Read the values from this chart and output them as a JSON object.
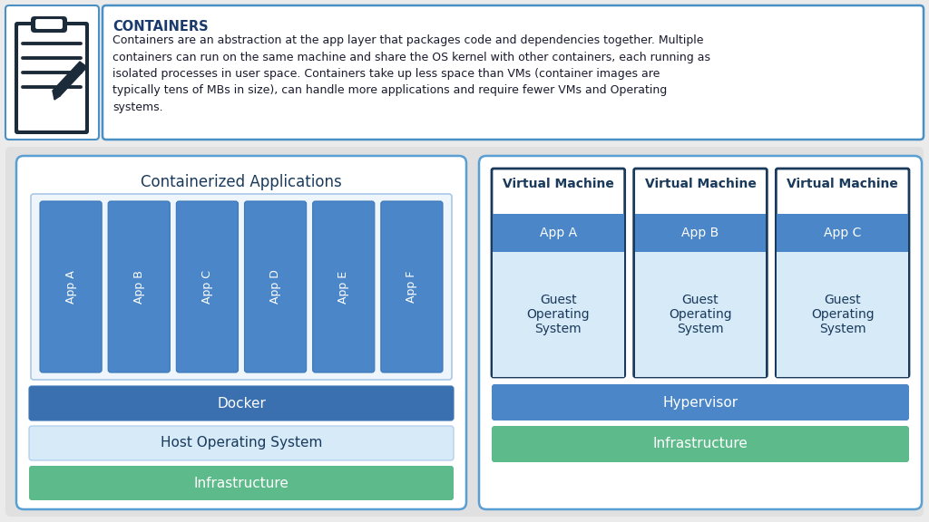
{
  "bg_color": "#ebebeb",
  "top_box_border": "#4a90c4",
  "top_box_bg": "#ffffff",
  "title_text": "CONTAINERS",
  "title_color": "#1a3a6b",
  "body_text": "Containers are an abstraction at the app layer that packages code and dependencies together. Multiple\ncontainers can run on the same machine and share the OS kernel with other containers, each running as\nisolated processes in user space. Containers take up less space than VMs (container images are\ntypically tens of MBs in size), can handle more applications and require fewer VMs and Operating\nsystems.",
  "body_color": "#1a1a2e",
  "left_panel_title": "Containerized Applications",
  "left_panel_title_color": "#1a3a5c",
  "apps_left": [
    "App A",
    "App B",
    "App C",
    "App D",
    "App E",
    "App F"
  ],
  "app_bar_color": "#4a86c8",
  "app_bar_border": "#3a76b8",
  "docker_color": "#3a6fb0",
  "docker_text": "Docker",
  "host_os_color": "#d6eaf8",
  "host_os_text": "Host Operating System",
  "host_os_text_color": "#1a3a5c",
  "infra_color": "#5dba8a",
  "infra_text": "Infrastructure",
  "infra_text_color": "#ffffff",
  "docker_text_color": "#ffffff",
  "vm_header_color": "#ffffff",
  "vm_header_border": "#1a3a5c",
  "vm_title_text": "Virtual Machine",
  "vm_title_color": "#1a3a5c",
  "vm_app_colors": [
    "#4a86c8",
    "#4a86c8",
    "#4a86c8"
  ],
  "vm_apps": [
    "App A",
    "App B",
    "App C"
  ],
  "vm_app_text_color": "#ffffff",
  "vm_guest_os_color": "#d6eaf8",
  "vm_guest_os_text": "Guest\nOperating\nSystem",
  "vm_guest_os_text_color": "#1a3a5c",
  "hypervisor_color": "#4a86c8",
  "hypervisor_text": "Hypervisor",
  "hypervisor_text_color": "#ffffff",
  "panel_bg": "#ffffff",
  "panel_border": "#5a9fd4",
  "inner_apps_border": "#aac8e8",
  "inner_apps_bg": "#eef5fb"
}
